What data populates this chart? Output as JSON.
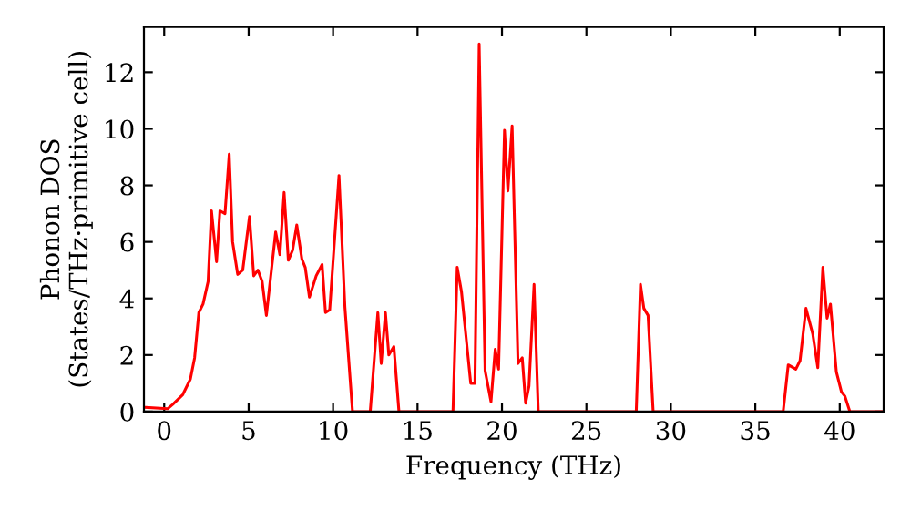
{
  "chart_data": {
    "type": "line",
    "xlabel": "Frequency (THz)",
    "ylabel": "Phonon DOS\n(States/THz·primitive cell)",
    "xlim": [
      -1.2,
      42.6
    ],
    "ylim": [
      0,
      13.6
    ],
    "xticks": [
      0,
      5,
      10,
      15,
      20,
      25,
      30,
      35,
      40
    ],
    "yticks": [
      0,
      2,
      4,
      6,
      8,
      10,
      12
    ],
    "grid": false,
    "legend": false,
    "marker": "none",
    "line_style": "solid",
    "series": [
      {
        "color": "#ff0000",
        "x": [
          -1.1,
          0.2,
          0.5,
          1.1,
          1.55,
          1.8,
          2.05,
          2.3,
          2.6,
          2.8,
          3.1,
          3.3,
          3.6,
          3.85,
          4.05,
          4.35,
          4.65,
          5.05,
          5.3,
          5.55,
          5.8,
          6.05,
          6.6,
          6.85,
          7.1,
          7.35,
          7.6,
          7.85,
          8.15,
          8.35,
          8.6,
          9.0,
          9.35,
          9.55,
          9.8,
          10.35,
          10.7,
          11.15,
          12.2,
          12.65,
          12.85,
          13.1,
          13.3,
          13.6,
          13.9,
          17.1,
          17.35,
          17.6,
          18.15,
          18.4,
          18.65,
          19.0,
          19.35,
          19.6,
          19.8,
          20.15,
          20.35,
          20.6,
          20.95,
          21.2,
          21.4,
          21.6,
          21.9,
          22.15,
          27.95,
          28.2,
          28.4,
          28.65,
          28.95,
          36.65,
          36.95,
          37.4,
          37.65,
          38.0,
          38.4,
          38.7,
          39.0,
          39.25,
          39.45,
          39.8,
          40.1,
          40.3,
          40.6,
          42.6
        ],
        "values": [
          0.15,
          0.1,
          0.25,
          0.6,
          1.15,
          1.9,
          3.5,
          3.8,
          4.6,
          7.1,
          5.3,
          7.1,
          7.0,
          9.1,
          6.0,
          4.85,
          5.0,
          6.9,
          4.8,
          5.0,
          4.6,
          3.4,
          6.35,
          5.55,
          7.75,
          5.35,
          5.7,
          6.6,
          5.4,
          5.1,
          4.05,
          4.8,
          5.2,
          3.5,
          3.6,
          8.35,
          3.7,
          0,
          0,
          3.5,
          1.7,
          3.5,
          2.0,
          2.3,
          0,
          0,
          5.1,
          4.25,
          1.0,
          1.0,
          13.0,
          1.45,
          0.35,
          2.2,
          1.5,
          9.95,
          7.8,
          10.1,
          1.7,
          1.9,
          0.3,
          0.9,
          4.5,
          0,
          0,
          4.5,
          3.65,
          3.4,
          0,
          0,
          1.65,
          1.5,
          1.8,
          3.65,
          2.75,
          1.55,
          5.1,
          3.3,
          3.8,
          1.4,
          0.7,
          0.55,
          0,
          0
        ]
      }
    ]
  }
}
